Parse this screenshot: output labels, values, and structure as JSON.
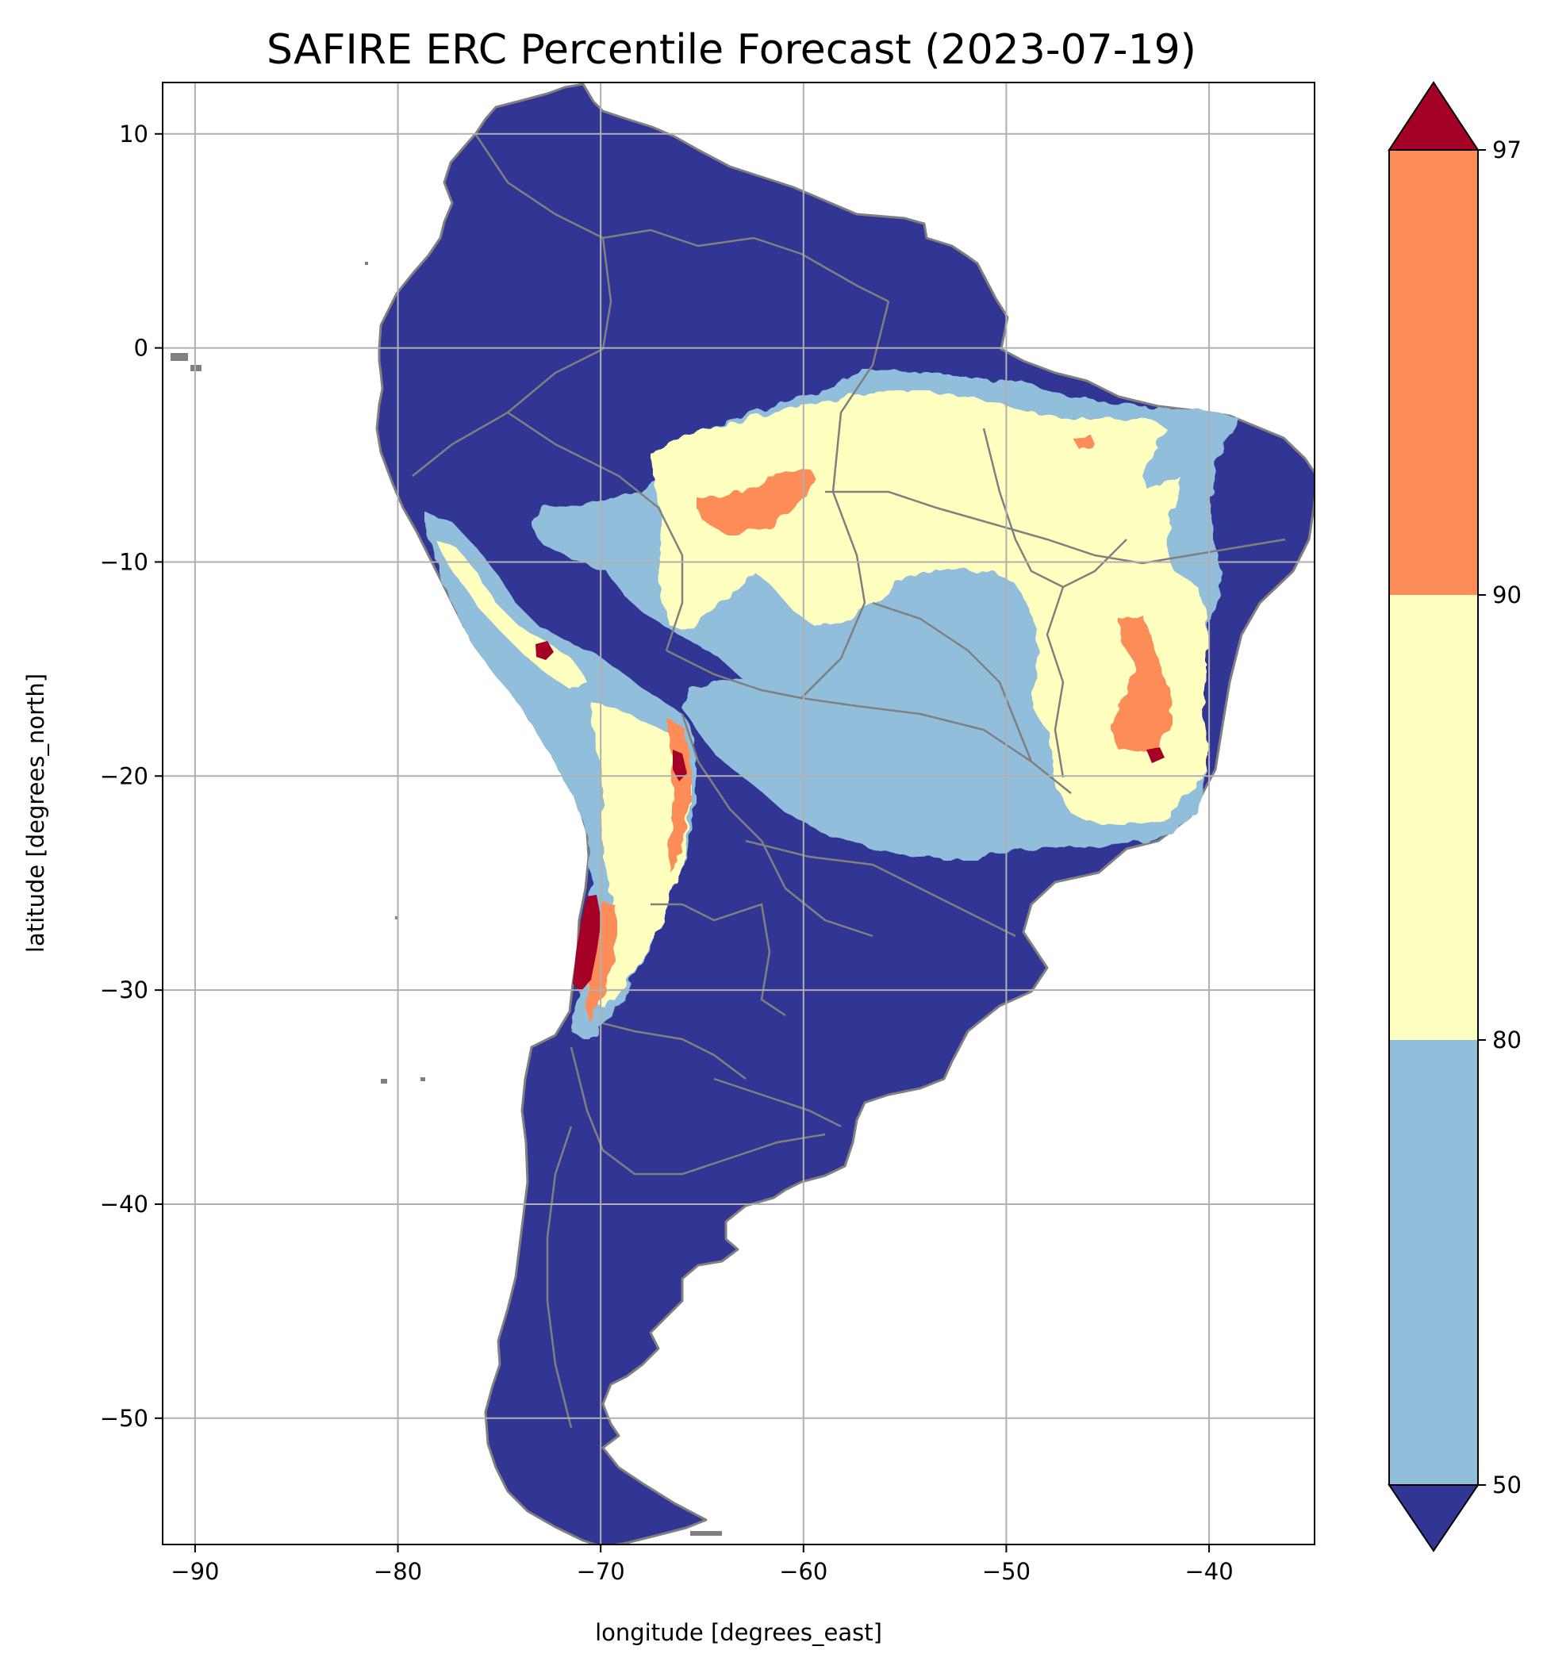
{
  "title": "SAFIRE ERC Percentile Forecast (2023-07-19)",
  "xlabel": "longitude [degrees_east]",
  "ylabel": "latitude [degrees_north]",
  "map": {
    "lon_range": [
      -91.6,
      -34.8
    ],
    "lat_range": [
      -55.9,
      12.4
    ],
    "lon_ticks": [
      -90,
      -80,
      -70,
      -60,
      -50,
      -40
    ],
    "lat_ticks": [
      10,
      0,
      -10,
      -20,
      -30,
      -40,
      -50
    ],
    "lon_tick_labels": [
      "−90",
      "−80",
      "−70",
      "−60",
      "−50",
      "−40"
    ],
    "lat_tick_labels": [
      "10",
      "0",
      "−10",
      "−20",
      "−30",
      "−40",
      "−50"
    ],
    "grid": true,
    "land_color": "#313695",
    "border_color": "#808080",
    "grid_color": "#b0b0b0"
  },
  "colorbar": {
    "levels": [
      50,
      80,
      90,
      97
    ],
    "tick_labels": [
      "50",
      "80",
      "90",
      "97"
    ],
    "colors": {
      "under": "#313695",
      "50-80": "#91bfdb",
      "80-90": "#ffffbf",
      "90-97": "#fc8d59",
      "over": "#a50026"
    }
  }
}
